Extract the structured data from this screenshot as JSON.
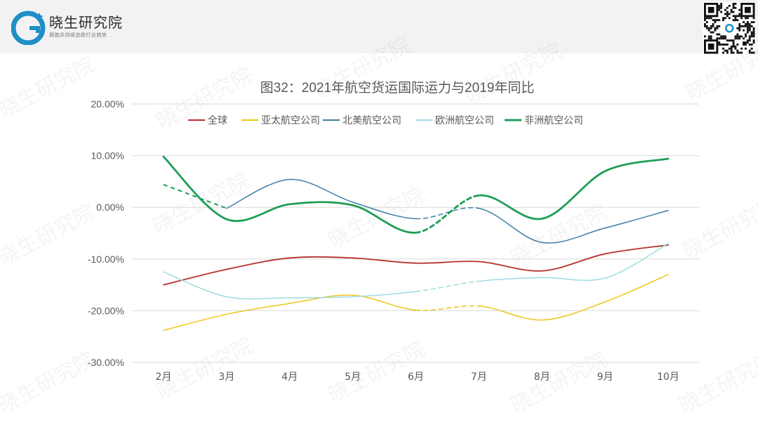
{
  "brand": {
    "name": "晓生研究院",
    "slogan": "拥抱并持续追踪行业趋势",
    "watermark": "晓生研究院"
  },
  "colors": {
    "brand_blue": "#1f8fc7",
    "header_bg": "#f2f2f2"
  },
  "chart_data": {
    "type": "line",
    "title": "图32：2021年航空货运国际运力与2019年同比",
    "categories": [
      "2月",
      "3月",
      "4月",
      "5月",
      "6月",
      "7月",
      "8月",
      "9月",
      "10月"
    ],
    "y_tick_labels": [
      "20.00%",
      "10.00%",
      "0.00%",
      "-10.00%",
      "-20.00%",
      "-30.00%"
    ],
    "ylim": [
      -30,
      20
    ],
    "grid": true,
    "legend_position": "top",
    "series": [
      {
        "name": "全球",
        "color": "#b7312c",
        "values": [
          -15.0,
          -12.0,
          -9.8,
          -9.8,
          -10.8,
          -10.5,
          -12.3,
          -9.0,
          -7.3
        ],
        "dashed_segments": []
      },
      {
        "name": "亚太航空公司",
        "color": "#f0c419",
        "values": [
          -23.8,
          -20.7,
          -18.6,
          -17.0,
          -19.9,
          -19.1,
          -21.8,
          -18.3,
          -13.0
        ],
        "dashed_segments": [
          4
        ]
      },
      {
        "name": "北美航空公司",
        "color": "#3d7ea6",
        "values": [
          null,
          -0.2,
          5.4,
          1.0,
          -2.2,
          -0.2,
          -6.8,
          -4.0,
          -0.6
        ],
        "dashed_segments": [
          4
        ]
      },
      {
        "name": "欧洲航空公司",
        "color": "#9fdce0",
        "values": [
          -12.5,
          -17.3,
          -17.5,
          -17.3,
          -16.3,
          -14.3,
          -13.6,
          -13.7,
          -7.0
        ],
        "dashed_segments": [
          4
        ]
      },
      {
        "name": "非洲航空公司",
        "color": "#1e9e57",
        "values": [
          9.8,
          -2.3,
          0.6,
          0.4,
          -4.9,
          2.3,
          -2.2,
          7.0,
          9.4
        ],
        "dashed_segments": [
          4
        ]
      },
      {
        "name": "",
        "color": "#3d7ea6",
        "values": [
          null,
          null,
          null,
          null,
          null,
          null,
          null,
          null,
          null
        ],
        "dashed_segments": []
      }
    ],
    "extra_dashed": [
      {
        "color": "#1e9e57",
        "values": [
          4.4,
          -0.2,
          null,
          null,
          null,
          null,
          null,
          null,
          null
        ]
      }
    ]
  }
}
